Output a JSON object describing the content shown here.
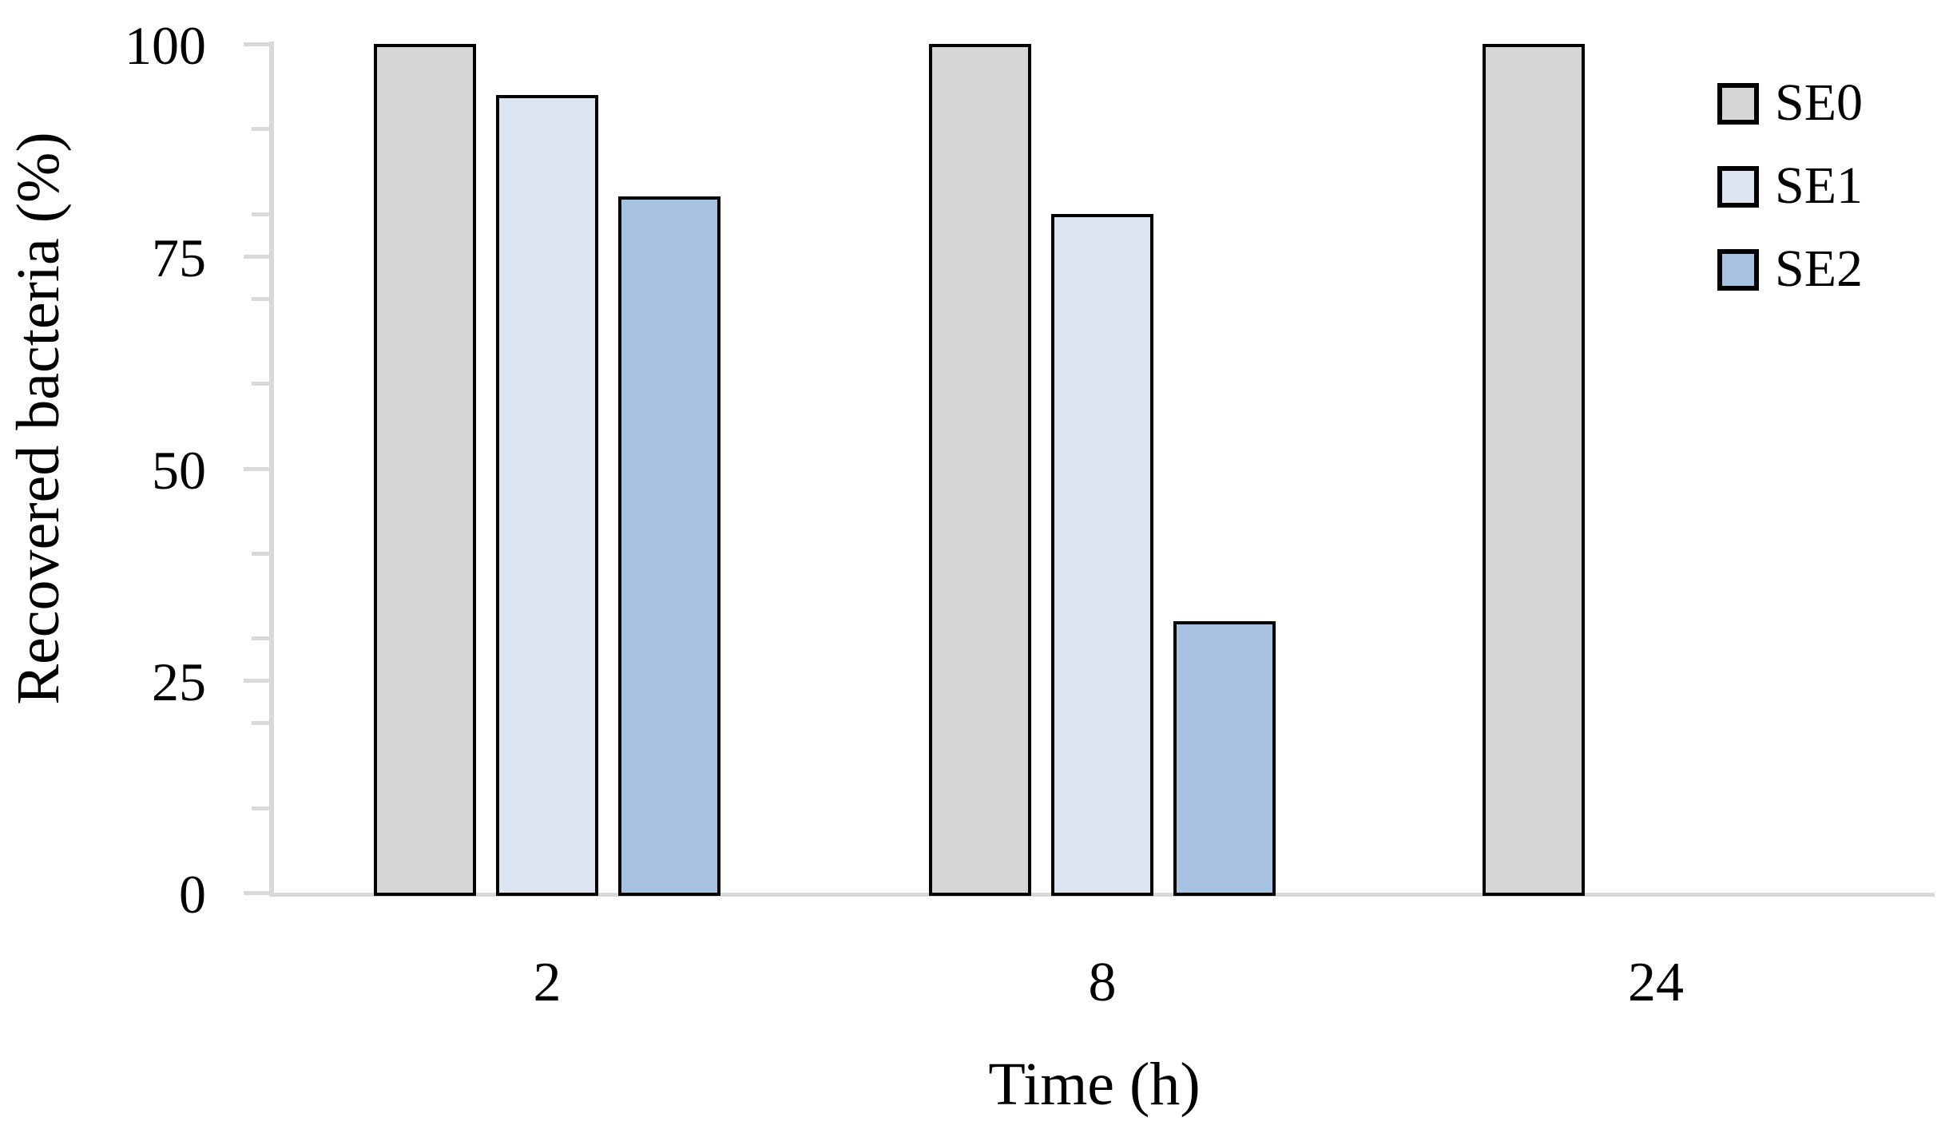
{
  "chart_data": {
    "type": "bar",
    "title": "",
    "xlabel": "Time (h)",
    "ylabel": "Recovered bacteria (%)",
    "categories": [
      "2",
      "8",
      "24"
    ],
    "series": [
      {
        "name": "SE0",
        "color": "#d6d6d6",
        "values": [
          100,
          100,
          100
        ]
      },
      {
        "name": "SE1",
        "color": "#dce5f1",
        "values": [
          94,
          80,
          0
        ]
      },
      {
        "name": "SE2",
        "color": "#a8c2e2",
        "values": [
          82,
          32,
          0
        ]
      }
    ],
    "ylim": [
      0,
      100
    ],
    "ytick_labels": [
      "0",
      "25",
      "50",
      "75",
      "100"
    ],
    "yticks_major": [
      0,
      25,
      50,
      75,
      100
    ],
    "yticks_minor": [
      10,
      20,
      30,
      40,
      60,
      70,
      80,
      90
    ],
    "legend": {
      "position": "top-right",
      "entries": [
        "SE0",
        "SE1",
        "SE2"
      ]
    },
    "grid": false,
    "axis_color": "#d9d9d9",
    "bar_border_color": "#000000",
    "text_color": "#000000"
  }
}
